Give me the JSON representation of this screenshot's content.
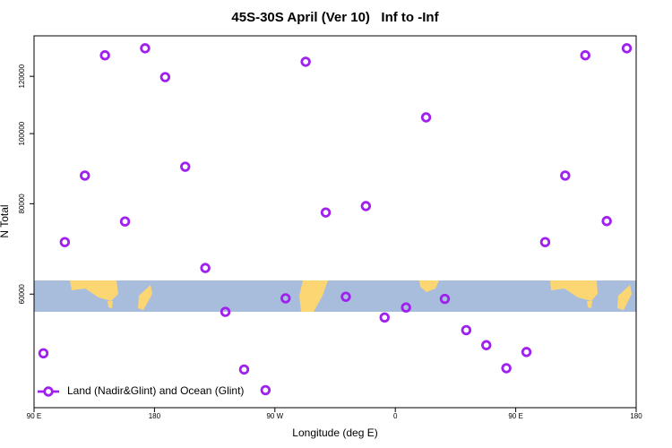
{
  "chart_data": {
    "type": "scatter",
    "title": "45S-30S April (Ver 10)   Inf to -Inf",
    "xlabel": "Longitude (deg E)",
    "ylabel": "N Total",
    "xlim": [
      90,
      540
    ],
    "xticks": [
      {
        "value": 90,
        "label": "90 E"
      },
      180,
      {
        "value": 270,
        "label": "90 W"
      },
      {
        "value": 360,
        "label": "0"
      },
      {
        "value": 450,
        "label": "90 E"
      },
      {
        "value": 540,
        "label": "180"
      }
    ],
    "ylim": [
      41800,
      136500
    ],
    "ylog": true,
    "yticks": [
      60000,
      80000,
      100000,
      120000
    ],
    "legend": "bottom-left",
    "series": [
      {
        "name": "Land (Nadir&Glint) and Ocean (Glint)",
        "color": "#a020f0",
        "x": [
          97,
          113,
          128,
          143,
          158,
          173,
          188,
          203,
          218,
          233,
          247,
          263,
          278,
          293,
          308,
          323,
          338,
          352,
          368,
          383,
          397,
          413,
          428,
          443,
          458,
          472,
          487,
          502,
          518,
          533
        ],
        "values": [
          49700,
          70800,
          87500,
          128300,
          75600,
          131200,
          119700,
          90000,
          65200,
          56700,
          47200,
          44200,
          59200,
          125700,
          77800,
          59500,
          79400,
          55700,
          57500,
          105300,
          59100,
          53500,
          51000,
          47400,
          49900,
          70800,
          87500,
          128300,
          75700,
          131200
        ]
      }
    ]
  }
}
